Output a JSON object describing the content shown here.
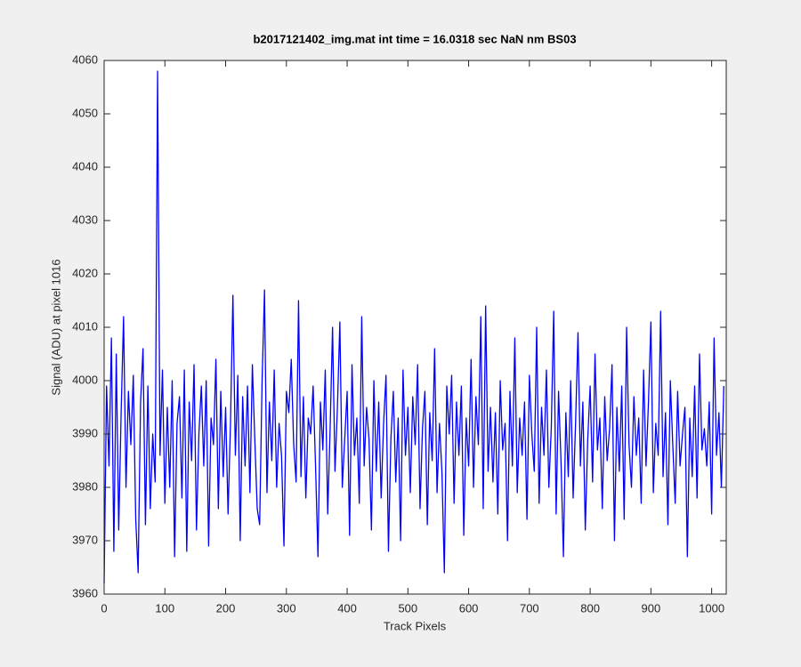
{
  "chart_data": {
    "type": "line",
    "title": "b2017121402_img.mat int time = 16.0318 sec  NaN nm BS03",
    "x_label": "Track Pixels",
    "y_label": "Signal (ADU) at pixel 1016",
    "color": "#0000ff",
    "grid": false,
    "xlim": [
      0,
      1024
    ],
    "ylim": [
      3960,
      4060
    ],
    "xticks": [
      0,
      100,
      200,
      300,
      400,
      500,
      600,
      700,
      800,
      900,
      1000
    ],
    "yticks": [
      3960,
      3970,
      3980,
      3990,
      4000,
      4010,
      4020,
      4030,
      4040,
      4050,
      4060
    ],
    "x": [
      0,
      4,
      8,
      12,
      16,
      20,
      24,
      28,
      32,
      36,
      40,
      44,
      48,
      52,
      56,
      60,
      64,
      68,
      72,
      76,
      80,
      84,
      88,
      92,
      96,
      100,
      104,
      108,
      112,
      116,
      120,
      124,
      128,
      132,
      136,
      140,
      144,
      148,
      152,
      156,
      160,
      164,
      168,
      172,
      176,
      180,
      184,
      188,
      192,
      196,
      200,
      204,
      208,
      212,
      216,
      220,
      224,
      228,
      232,
      236,
      240,
      244,
      248,
      252,
      256,
      260,
      264,
      268,
      272,
      276,
      280,
      284,
      288,
      292,
      296,
      300,
      304,
      308,
      312,
      316,
      320,
      324,
      328,
      332,
      336,
      340,
      344,
      348,
      352,
      356,
      360,
      364,
      368,
      372,
      376,
      380,
      384,
      388,
      392,
      396,
      400,
      404,
      408,
      412,
      416,
      420,
      424,
      428,
      432,
      436,
      440,
      444,
      448,
      452,
      456,
      460,
      464,
      468,
      472,
      476,
      480,
      484,
      488,
      492,
      496,
      500,
      504,
      508,
      512,
      516,
      520,
      524,
      528,
      532,
      536,
      540,
      544,
      548,
      552,
      556,
      560,
      564,
      568,
      572,
      576,
      580,
      584,
      588,
      592,
      596,
      600,
      604,
      608,
      612,
      616,
      620,
      624,
      628,
      632,
      636,
      640,
      644,
      648,
      652,
      656,
      660,
      664,
      668,
      672,
      676,
      680,
      684,
      688,
      692,
      696,
      700,
      704,
      708,
      712,
      716,
      720,
      724,
      728,
      732,
      736,
      740,
      744,
      748,
      752,
      756,
      760,
      764,
      768,
      772,
      776,
      780,
      784,
      788,
      792,
      796,
      800,
      804,
      808,
      812,
      816,
      820,
      824,
      828,
      832,
      836,
      840,
      844,
      848,
      852,
      856,
      860,
      864,
      868,
      872,
      876,
      880,
      884,
      888,
      892,
      896,
      900,
      904,
      908,
      912,
      916,
      920,
      924,
      928,
      932,
      936,
      940,
      944,
      948,
      952,
      956,
      960,
      964,
      968,
      972,
      976,
      980,
      984,
      988,
      992,
      996,
      1000,
      1004,
      1008,
      1012,
      1016,
      1020
    ],
    "values": [
      3962,
      3999,
      3984,
      4008,
      3968,
      4005,
      3972,
      3994,
      4012,
      3980,
      3998,
      3988,
      4001,
      3974,
      3964,
      3996,
      4006,
      3973,
      3999,
      3976,
      3990,
      3981,
      4058,
      3986,
      4002,
      3977,
      3995,
      3980,
      4000,
      3967,
      3992,
      3997,
      3978,
      4002,
      3968,
      3996,
      3985,
      4003,
      3972,
      3990,
      3999,
      3984,
      4000,
      3969,
      3993,
      3988,
      4004,
      3976,
      3998,
      3982,
      3995,
      3975,
      3992,
      4016,
      3986,
      4001,
      3970,
      3997,
      3984,
      3999,
      3979,
      4003,
      3989,
      3976,
      3973,
      4000,
      4017,
      3979,
      3996,
      3985,
      4002,
      3980,
      3992,
      3986,
      3969,
      3998,
      3994,
      4004,
      3988,
      3981,
      4015,
      3982,
      3997,
      3978,
      3993,
      3990,
      3999,
      3984,
      3967,
      3996,
      3987,
      4002,
      3975,
      3991,
      4010,
      3983,
      3995,
      4011,
      3980,
      3989,
      3998,
      3971,
      4003,
      3986,
      3993,
      3977,
      4012,
      3984,
      3995,
      3989,
      3972,
      4000,
      3983,
      3996,
      3978,
      3992,
      4001,
      3968,
      3989,
      3998,
      3981,
      3993,
      3970,
      4002,
      3986,
      3995,
      3979,
      3997,
      3988,
      4003,
      3976,
      3991,
      3998,
      3973,
      3994,
      3985,
      4006,
      3979,
      3992,
      3983,
      3964,
      3999,
      3990,
      4001,
      3977,
      3996,
      3986,
      3999,
      3971,
      3993,
      3984,
      4004,
      3980,
      3997,
      3988,
      4012,
      3976,
      4014,
      3983,
      3995,
      3981,
      3994,
      3975,
      4000,
      3987,
      3992,
      3970,
      3998,
      3984,
      4008,
      3979,
      3993,
      3986,
      3996,
      3974,
      4001,
      3990,
      3983,
      4010,
      3977,
      3995,
      3986,
      4002,
      3980,
      3991,
      4013,
      3975,
      3998,
      3985,
      3967,
      3994,
      3982,
      4000,
      3978,
      3992,
      4009,
      3984,
      3996,
      3972,
      3989,
      3999,
      3981,
      4005,
      3987,
      3993,
      3976,
      3997,
      3985,
      3991,
      4003,
      3970,
      3995,
      3983,
      3999,
      3974,
      4010,
      3988,
      3980,
      3997,
      3986,
      3993,
      3977,
      4002,
      3984,
      3996,
      4011,
      3979,
      3992,
      3986,
      4013,
      3982,
      3994,
      3973,
      4000,
      3988,
      3977,
      3998,
      3984,
      3990,
      3995,
      3967,
      3993,
      3982,
      3999,
      3978,
      4005,
      3987,
      3991,
      3984,
      3996,
      3975,
      4008,
      3986,
      3994,
      3980,
      3999
    ]
  }
}
